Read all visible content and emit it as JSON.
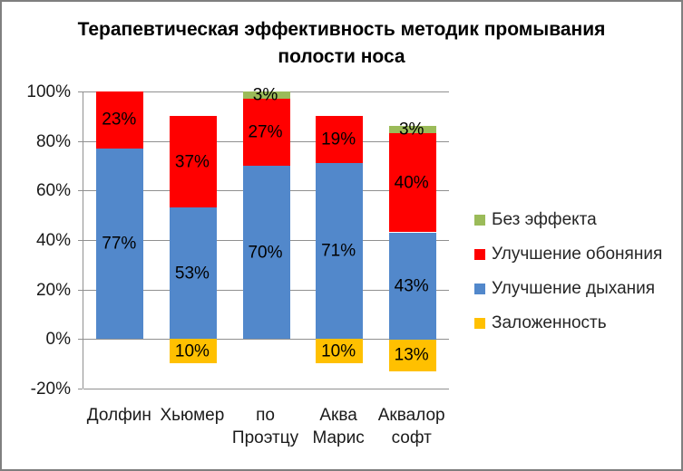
{
  "window": {
    "background": "#FFFFFF",
    "border_color": "#7F7F7F"
  },
  "title": {
    "lines": [
      "Терапевтическая эффективность методик промывания",
      "полости носа"
    ]
  },
  "chart_data": {
    "type": "bar",
    "stacked": true,
    "title": "Терапевтическая эффективность методик промывания полости носа",
    "categories": [
      "Долфин",
      "Хьюмер",
      "по Проэтцу",
      "Аква Марис",
      "Аквалор софт"
    ],
    "series": [
      {
        "name": "Заложенность",
        "color": "#FFC000",
        "values": [
          0,
          -10,
          0,
          -10,
          -13
        ],
        "labels": [
          "",
          "10%",
          "",
          "10%",
          "13%"
        ]
      },
      {
        "name": "Улучшение дыхания",
        "color": "#5288CB",
        "values": [
          77,
          53,
          70,
          71,
          43
        ],
        "labels": [
          "77%",
          "53%",
          "70%",
          "71%",
          "43%"
        ]
      },
      {
        "name": "Улучшение обоняния",
        "color": "#FF0000",
        "values": [
          23,
          37,
          27,
          19,
          40
        ],
        "labels": [
          "23%",
          "37%",
          "27%",
          "19%",
          "40%"
        ]
      },
      {
        "name": "Без эффекта",
        "color": "#9BBB59",
        "values": [
          0,
          0,
          3,
          0,
          3
        ],
        "labels": [
          "",
          "",
          "3%",
          "",
          "3%"
        ]
      }
    ],
    "ylim": [
      -20,
      100
    ],
    "y_ticks": [
      {
        "label": "100%",
        "value": 100
      },
      {
        "label": "80%",
        "value": 80
      },
      {
        "label": "60%",
        "value": 60
      },
      {
        "label": "40%",
        "value": 40
      },
      {
        "label": "20%",
        "value": 20
      },
      {
        "label": "0%",
        "value": 0
      },
      {
        "label": "-20%",
        "value": -20
      }
    ],
    "grid": true,
    "gridline_color": "#909090",
    "legend_position": "right",
    "legend": [
      {
        "label": "Без эффекта",
        "color": "#9BBB59"
      },
      {
        "label": "Улучшение обоняния",
        "color": "#FF0000"
      },
      {
        "label": "Улучшение дыхания",
        "color": "#5288CB"
      },
      {
        "label": "Заложенность",
        "color": "#FFC000"
      }
    ]
  }
}
